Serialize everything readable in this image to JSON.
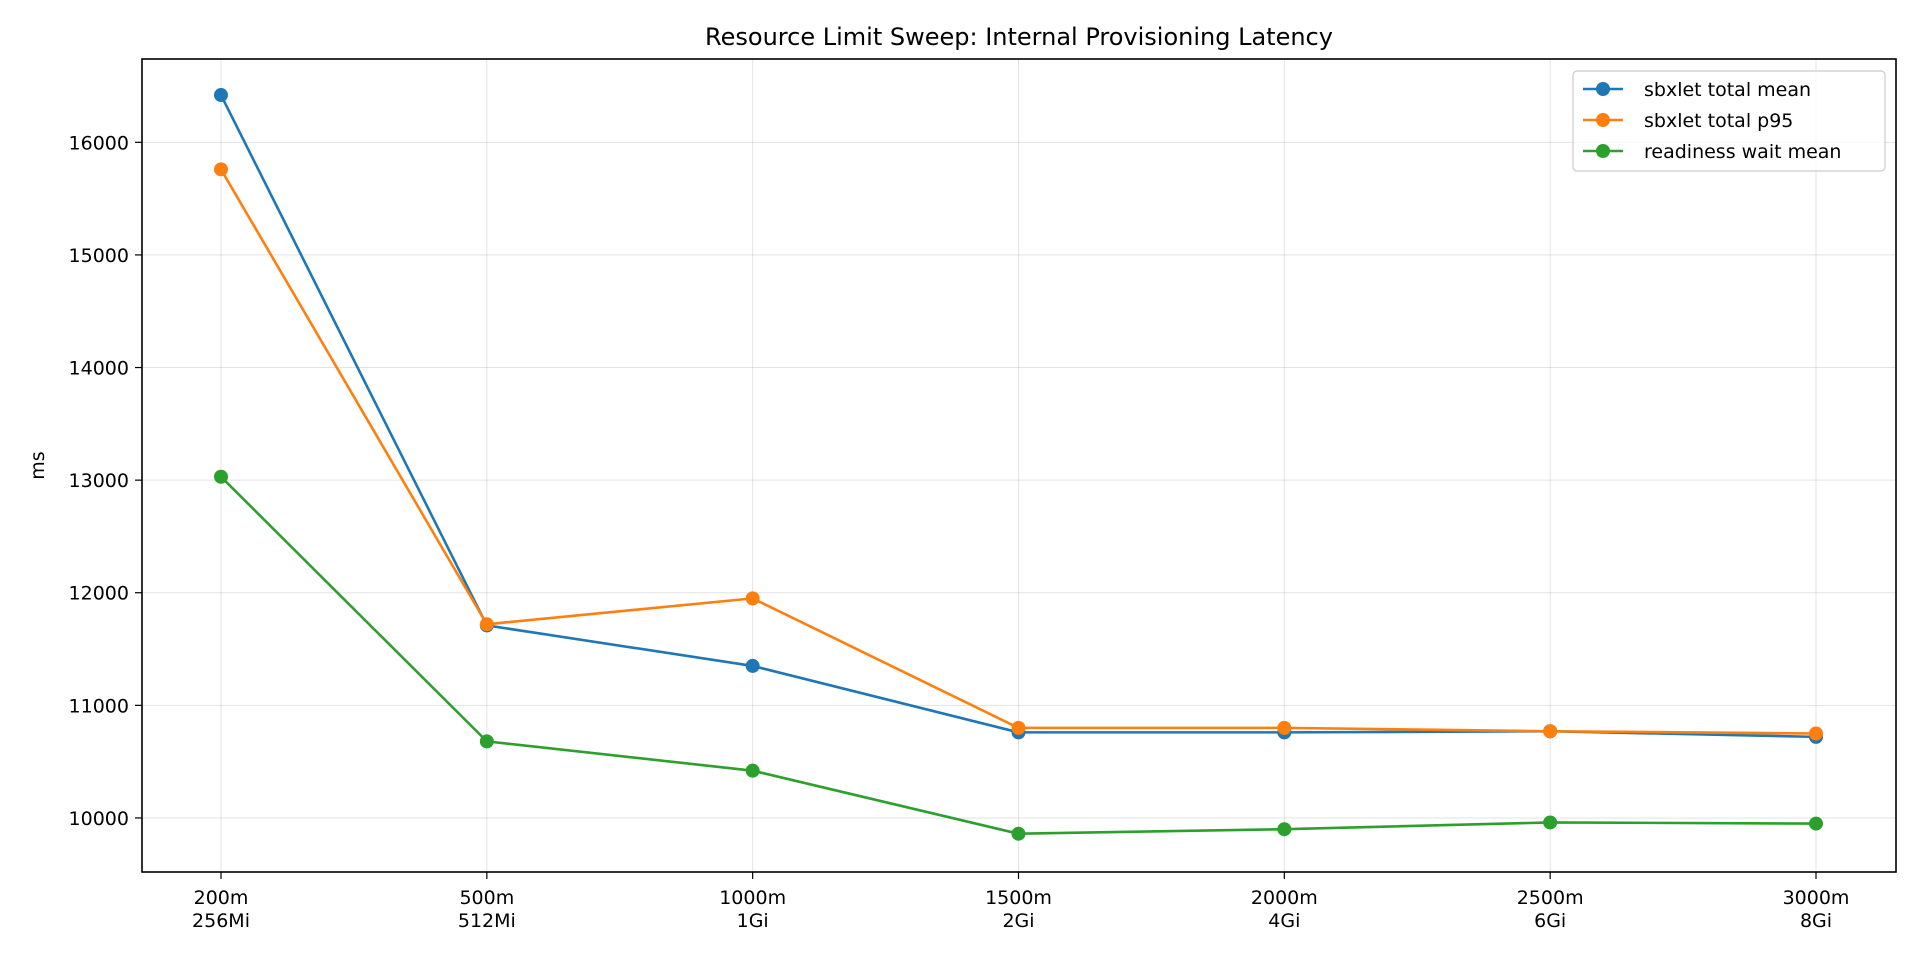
{
  "chart_data": {
    "type": "line",
    "title": "Resource Limit Sweep: Internal Provisioning Latency",
    "xlabel": "",
    "ylabel": "ms",
    "categories": [
      [
        "200m",
        "256Mi"
      ],
      [
        "500m",
        "512Mi"
      ],
      [
        "1000m",
        "1Gi"
      ],
      [
        "1500m",
        "2Gi"
      ],
      [
        "2000m",
        "4Gi"
      ],
      [
        "2500m",
        "6Gi"
      ],
      [
        "3000m",
        "8Gi"
      ]
    ],
    "ylim": [
      9520,
      16740
    ],
    "yticks": [
      10000,
      11000,
      12000,
      13000,
      14000,
      15000,
      16000
    ],
    "grid": true,
    "legend_position": "top-right",
    "series": [
      {
        "name": "sbxlet total mean",
        "color": "#1f77b4",
        "values": [
          16420,
          11710,
          11350,
          10760,
          10760,
          10770,
          10720
        ]
      },
      {
        "name": "sbxlet total p95",
        "color": "#ff7f0e",
        "values": [
          15760,
          11720,
          11950,
          10800,
          10800,
          10770,
          10750
        ]
      },
      {
        "name": "readiness wait mean",
        "color": "#2ca02c",
        "values": [
          13030,
          10680,
          10420,
          9860,
          9900,
          9960,
          9950
        ]
      }
    ]
  }
}
